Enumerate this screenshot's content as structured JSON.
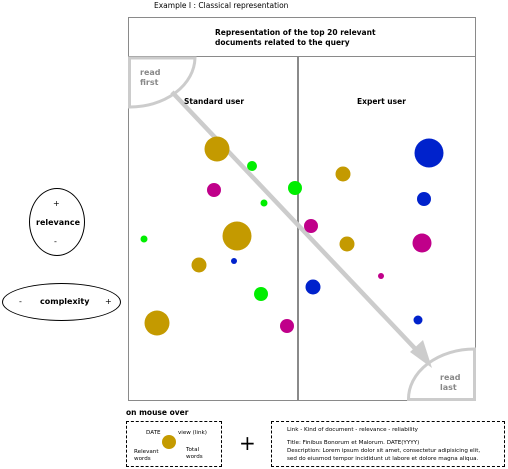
{
  "caption": "Example I : Classical representation",
  "header": {
    "line1": "Representation of the top 20 relevant",
    "line2": "documents related to the query"
  },
  "columns": {
    "standard": "Standard user",
    "expert": "Expert user"
  },
  "corners": {
    "read_first_1": "read",
    "read_first_2": "first",
    "read_last_1": "read",
    "read_last_2": "last"
  },
  "relevance": {
    "plus": "+",
    "label": "relevance",
    "minus": "-"
  },
  "complexity": {
    "minus": "-",
    "label": "complexity",
    "plus": "+"
  },
  "mouseover": {
    "title": "on mouse over",
    "legend_date": "DATE",
    "legend_view": "view (link)",
    "legend_relevant_1": "Relevant",
    "legend_relevant_2": "words",
    "legend_total_1": "Total",
    "legend_total_2": "words",
    "plus": "+",
    "info_line1": "Link - Kind of document - relevance - reliability",
    "info_line2": "Title: Finibus Bonorum et Malorum. DATE(YYYY)",
    "info_line3": "Description: Lorem ipsum dolor sit amet, consectetur adipisicing elit,",
    "info_line4": "sed do eiusmod tempor incididunt ut labore et dolore magna aliqua."
  },
  "colors": {
    "gold": "#c49a00",
    "green": "#00ee00",
    "magenta": "#c0008a",
    "blue": "#0022cc",
    "frame_gray": "#8a8a8a",
    "arrow_gray": "#cccccc",
    "corner_text": "#888888"
  }
}
